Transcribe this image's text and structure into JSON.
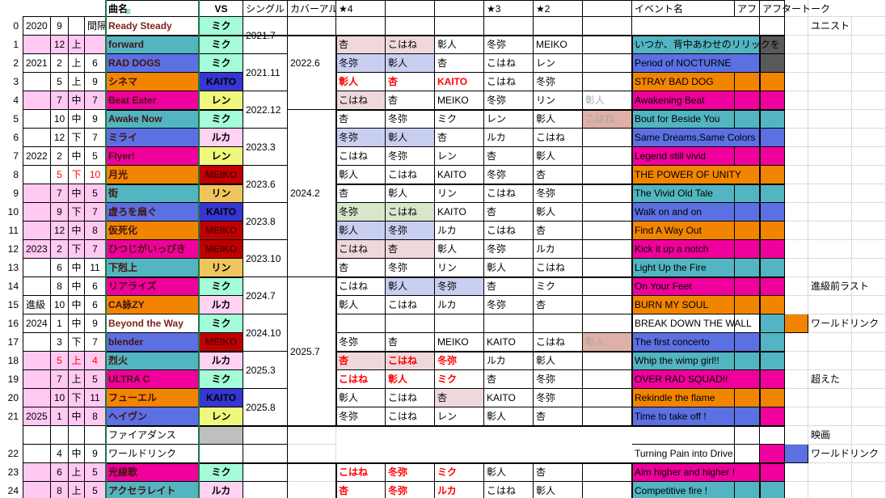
{
  "columns": {
    "song": "曲名",
    "vs": "VS",
    "single": "シングル",
    "cover": "カバーアル",
    "star4": "★4",
    "star3": "★3",
    "star2": "★2",
    "event": "イベント名",
    "af": "アフ",
    "aftertalk": "アフタートーク"
  },
  "icons": {
    "filter": "≡"
  },
  "palette": {
    "white": "#FFFFFF",
    "teal": "#52B5C1",
    "blue": "#5B70E2",
    "orange": "#F28500",
    "magenta": "#F0009C",
    "darkgray": "#595959",
    "graycell": "#BFBFBF",
    "miku": "#A4FCD8",
    "luka": "#FFD1F2",
    "len": "#EFF77D",
    "rin": "#EFC65E",
    "kaito": "#3636D2",
    "meiko": "#C00000",
    "rose": "#EFD8DB",
    "lav": "#C9CFF1",
    "ltgreen": "#D8E6CB",
    "salmon": "#DFB0A5",
    "leftpink": "#FFC9F2"
  },
  "singles": [
    {
      "row": 0,
      "label": "2021.7"
    },
    {
      "row": 2,
      "label": "2021.11"
    },
    {
      "row": 4,
      "label": "2022.12"
    },
    {
      "row": 6,
      "label": "2023.3"
    },
    {
      "row": 8,
      "label": "2023.6"
    },
    {
      "row": 10,
      "label": "2023.8"
    },
    {
      "row": 12,
      "label": "2023.10"
    },
    {
      "row": 14,
      "label": "2024.7"
    },
    {
      "row": 16,
      "label": "2024.10"
    },
    {
      "row": 18,
      "label": "2025.3"
    },
    {
      "row": 20,
      "label": "2025.8"
    }
  ],
  "covers": [
    {
      "row": 0,
      "span": 5,
      "label": "2022.6"
    },
    {
      "row": 5,
      "span": 9,
      "label": "2024.2"
    },
    {
      "row": 14,
      "span": 8,
      "label": "2025.7"
    }
  ],
  "rows": [
    {
      "n": "0",
      "y": "2020",
      "mo": "9",
      "pe": "",
      "ct": "間隔",
      "clip": true,
      "song": {
        "label": "Ready Steady",
        "bg": "white",
        "alt": true
      },
      "vs": {
        "label": "ミク",
        "bg": "miku"
      },
      "chars": [
        {
          "n": ""
        },
        {
          "n": ""
        },
        {
          "n": ""
        },
        {
          "n": ""
        },
        {
          "n": ""
        },
        {
          "n": ""
        }
      ],
      "event": null,
      "af": {
        "bg": "white"
      },
      "at": {
        "bg": "white"
      },
      "note": "ユニスト"
    },
    {
      "n": "1",
      "mo": "12",
      "pe": "上",
      "pink": true,
      "song": {
        "label": "forward",
        "bg": "teal"
      },
      "vs": {
        "label": "ミク",
        "bg": "miku"
      },
      "chars": [
        {
          "n": "杏",
          "bg": "rose"
        },
        {
          "n": "こはね",
          "bg": "rose"
        },
        {
          "n": "彰人"
        },
        {
          "n": "冬弥"
        },
        {
          "n": "MEIKO"
        },
        null
      ],
      "event": {
        "label": "いつか、背中あわせのリリックを",
        "bg": "teal",
        "span": true
      },
      "at": {
        "bg": "darkgray"
      },
      "note": ""
    },
    {
      "n": "2",
      "y": "2021",
      "mo": "2",
      "pe": "上",
      "ct": "6",
      "song": {
        "label": "RAD DOGS",
        "bg": "blue"
      },
      "vs": {
        "label": "ミク",
        "bg": "miku"
      },
      "chars": [
        {
          "n": "冬弥",
          "bg": "lav"
        },
        {
          "n": "彰人",
          "bg": "lav"
        },
        {
          "n": "杏"
        },
        {
          "n": "こはね"
        },
        {
          "n": "レン"
        },
        null
      ],
      "event": {
        "label": "Period of NOCTURNE",
        "bg": "blue",
        "span": true
      },
      "at": {
        "bg": "darkgray"
      },
      "note": ""
    },
    {
      "n": "3",
      "mo": "5",
      "pe": "上",
      "ct": "9",
      "song": {
        "label": "シネマ",
        "bg": "orange"
      },
      "vs": {
        "label": "KAITO",
        "bg": "kaito"
      },
      "chars": [
        {
          "n": "彰人",
          "red": true
        },
        {
          "n": "杏",
          "red": true
        },
        {
          "n": "KAITO",
          "red": true
        },
        {
          "n": "こはね"
        },
        {
          "n": "冬弥"
        },
        null
      ],
      "event": {
        "label": "STRAY BAD DOG",
        "bg": "orange"
      },
      "af": {
        "bg": "orange"
      },
      "at": {
        "bg": "orange"
      },
      "note": ""
    },
    {
      "n": "4",
      "mo": "7",
      "pe": "中",
      "ct": "7",
      "pink": true,
      "song": {
        "label": "Beat Eater",
        "bg": "magenta"
      },
      "vs": {
        "label": "レン",
        "bg": "len"
      },
      "chars": [
        {
          "n": "こはね",
          "bg": "rose"
        },
        {
          "n": "杏"
        },
        {
          "n": "MEIKO"
        },
        {
          "n": "冬弥"
        },
        {
          "n": "リン"
        },
        {
          "n": "彰人",
          "gray": true
        }
      ],
      "event": {
        "label": "Awakening Beat",
        "bg": "magenta"
      },
      "af": {
        "bg": "magenta"
      },
      "at": {
        "bg": "magenta"
      },
      "note": ""
    },
    {
      "n": "5",
      "mo": "10",
      "pe": "中",
      "ct": "9",
      "song": {
        "label": "Awake Now",
        "bg": "teal"
      },
      "vs": {
        "label": "ミク",
        "bg": "miku"
      },
      "chars": [
        {
          "n": "杏"
        },
        {
          "n": "冬弥"
        },
        {
          "n": "ミク"
        },
        {
          "n": "レン"
        },
        {
          "n": "彰人"
        },
        {
          "n": "こはね",
          "bg": "salmon",
          "gray": true
        }
      ],
      "event": {
        "label": "Bout for Beside You",
        "bg": "teal"
      },
      "af": {
        "bg": "teal"
      },
      "at": {
        "bg": "teal"
      },
      "note": ""
    },
    {
      "n": "6",
      "mo": "12",
      "pe": "下",
      "ct": "7",
      "song": {
        "label": "ミライ",
        "bg": "blue"
      },
      "vs": {
        "label": "ルカ",
        "bg": "luka"
      },
      "chars": [
        {
          "n": "冬弥",
          "bg": "lav"
        },
        {
          "n": "彰人",
          "bg": "lav"
        },
        {
          "n": "杏"
        },
        {
          "n": "ルカ"
        },
        {
          "n": "こはね"
        },
        null
      ],
      "event": {
        "label": "Same Dreams,Same Colors",
        "bg": "blue",
        "span": true
      },
      "at": {
        "bg": "blue"
      },
      "note": ""
    },
    {
      "n": "7",
      "y": "2022",
      "mo": "2",
      "pe": "中",
      "ct": "5",
      "song": {
        "label": "Flyer!",
        "bg": "magenta"
      },
      "vs": {
        "label": "レン",
        "bg": "len"
      },
      "chars": [
        {
          "n": "こはね"
        },
        {
          "n": "冬弥"
        },
        {
          "n": "レン"
        },
        {
          "n": "杏"
        },
        {
          "n": "彰人"
        },
        null
      ],
      "event": {
        "label": "Legend still vivid",
        "bg": "magenta"
      },
      "af": {
        "bg": "magenta"
      },
      "at": {
        "bg": "magenta"
      },
      "note": ""
    },
    {
      "n": "8",
      "mo": "5",
      "pe": "下",
      "ct": "10",
      "red": true,
      "song": {
        "label": "月光",
        "bg": "orange"
      },
      "vs": {
        "label": "MEIKO",
        "bg": "meiko"
      },
      "chars": [
        {
          "n": "彰人"
        },
        {
          "n": "こはね"
        },
        {
          "n": "KAITO"
        },
        {
          "n": "冬弥"
        },
        {
          "n": "杏"
        },
        null
      ],
      "event": {
        "label": "THE POWER OF UNITY",
        "bg": "orange",
        "span": true
      },
      "at": {
        "bg": "orange"
      },
      "note": ""
    },
    {
      "n": "9",
      "mo": "7",
      "pe": "中",
      "ct": "5",
      "pink": true,
      "song": {
        "label": "街",
        "bg": "teal"
      },
      "vs": {
        "label": "リン",
        "bg": "rin"
      },
      "chars": [
        {
          "n": "杏"
        },
        {
          "n": "彰人"
        },
        {
          "n": "リン"
        },
        {
          "n": "こはね"
        },
        {
          "n": "冬弥"
        },
        null
      ],
      "event": {
        "label": "The Vivid Old Tale",
        "bg": "teal"
      },
      "af": {
        "bg": "teal"
      },
      "at": {
        "bg": "teal"
      },
      "note": ""
    },
    {
      "n": "10",
      "mo": "9",
      "pe": "下",
      "ct": "7",
      "pink": true,
      "song": {
        "label": "虚ろを扇ぐ",
        "bg": "blue"
      },
      "vs": {
        "label": "KAITO",
        "bg": "kaito"
      },
      "chars": [
        {
          "n": "冬弥",
          "bg": "ltgreen"
        },
        {
          "n": "こはね",
          "bg": "ltgreen"
        },
        {
          "n": "KAITO"
        },
        {
          "n": "杏"
        },
        {
          "n": "彰人"
        },
        null
      ],
      "event": {
        "label": "Walk on and on",
        "bg": "blue"
      },
      "af": {
        "bg": "blue"
      },
      "at": {
        "bg": "blue"
      },
      "note": ""
    },
    {
      "n": "11",
      "mo": "12",
      "pe": "中",
      "ct": "8",
      "pink": true,
      "song": {
        "label": "仮死化",
        "bg": "orange"
      },
      "vs": {
        "label": "MEIKO",
        "bg": "meiko"
      },
      "chars": [
        {
          "n": "彰人",
          "bg": "lav"
        },
        {
          "n": "冬弥",
          "bg": "lav"
        },
        {
          "n": "ルカ"
        },
        {
          "n": "こはね"
        },
        {
          "n": "杏"
        },
        null
      ],
      "event": {
        "label": "Find A Way Out",
        "bg": "orange"
      },
      "af": {
        "bg": "orange"
      },
      "at": {
        "bg": "orange"
      },
      "note": ""
    },
    {
      "n": "12",
      "y": "2023",
      "mo": "2",
      "pe": "下",
      "ct": "7",
      "pink": true,
      "song": {
        "label": "ひつじがいっぴき",
        "bg": "magenta"
      },
      "vs": {
        "label": "MEIKO",
        "bg": "meiko"
      },
      "chars": [
        {
          "n": "こはね",
          "bg": "rose"
        },
        {
          "n": "杏",
          "bg": "rose"
        },
        {
          "n": "彰人"
        },
        {
          "n": "冬弥"
        },
        {
          "n": "ルカ"
        },
        null
      ],
      "event": {
        "label": "Kick it up a notch",
        "bg": "magenta"
      },
      "af": {
        "bg": "magenta"
      },
      "at": {
        "bg": "magenta"
      },
      "note": ""
    },
    {
      "n": "13",
      "mo": "6",
      "pe": "中",
      "ct": "11",
      "song": {
        "label": "下剋上",
        "bg": "teal"
      },
      "vs": {
        "label": "リン",
        "bg": "rin"
      },
      "chars": [
        {
          "n": "杏"
        },
        {
          "n": "冬弥"
        },
        {
          "n": "リン"
        },
        {
          "n": "彰人"
        },
        {
          "n": "こはね"
        },
        null
      ],
      "event": {
        "label": "Light Up the Fire",
        "bg": "teal"
      },
      "af": {
        "bg": "teal"
      },
      "at": {
        "bg": "teal"
      },
      "note": ""
    },
    {
      "n": "14",
      "mo": "8",
      "pe": "中",
      "ct": "6",
      "song": {
        "label": "リアライズ",
        "bg": "magenta"
      },
      "vs": {
        "label": "ミク",
        "bg": "miku"
      },
      "chars": [
        {
          "n": "こはね"
        },
        {
          "n": "彰人",
          "bg": "lav"
        },
        {
          "n": "冬弥",
          "bg": "lav"
        },
        {
          "n": "杏"
        },
        {
          "n": "ミク"
        },
        null
      ],
      "event": {
        "label": "On Your Feet",
        "bg": "magenta"
      },
      "af": {
        "bg": "magenta"
      },
      "at": {
        "bg": "magenta"
      },
      "note": "進級前ラスト"
    },
    {
      "n": "15",
      "y": "進級",
      "mo": "10",
      "pe": "中",
      "ct": "6",
      "song": {
        "label": "CA詠ZY",
        "bg": "orange"
      },
      "vs": {
        "label": "ルカ",
        "bg": "luka"
      },
      "chars": [
        {
          "n": "彰人"
        },
        {
          "n": "こはね"
        },
        {
          "n": "ルカ"
        },
        {
          "n": "冬弥"
        },
        {
          "n": "杏"
        },
        null
      ],
      "event": {
        "label": "BURN MY SOUL",
        "bg": "orange"
      },
      "af": {
        "bg": "orange"
      },
      "at": {
        "bg": "orange"
      },
      "note": ""
    },
    {
      "n": "16",
      "y": "2024",
      "mo": "1",
      "pe": "中",
      "ct": "9",
      "song": {
        "label": "Beyond the Way",
        "bg": "white",
        "alt": true
      },
      "vs": {
        "label": "ミク",
        "bg": "miku"
      },
      "chars": [
        {
          "n": ""
        },
        {
          "n": ""
        },
        {
          "n": ""
        },
        {
          "n": ""
        },
        {
          "n": ""
        },
        {
          "n": ""
        }
      ],
      "event": {
        "label": "BREAK DOWN THE WALL",
        "bg": "white"
      },
      "af": {
        "bg": "white"
      },
      "at": {
        "bg": "teal"
      },
      "extra": "orange",
      "note": "ワールドリンク"
    },
    {
      "n": "17",
      "mo": "3",
      "pe": "下",
      "ct": "7",
      "song": {
        "label": "blender",
        "bg": "blue"
      },
      "vs": {
        "label": "MEIKO",
        "bg": "meiko"
      },
      "chars": [
        {
          "n": "冬弥"
        },
        {
          "n": "杏"
        },
        {
          "n": "MEIKO"
        },
        {
          "n": "KAITO"
        },
        {
          "n": "こはね"
        },
        {
          "n": "彰人",
          "bg": "salmon",
          "gray": true
        }
      ],
      "event": {
        "label": "The first concerto",
        "bg": "blue"
      },
      "af": {
        "bg": "blue"
      },
      "at": {
        "bg": "teal"
      },
      "note": ""
    },
    {
      "n": "18",
      "mo": "5",
      "pe": "上",
      "ct": "4",
      "red": true,
      "pink": true,
      "song": {
        "label": "烈火",
        "bg": "teal"
      },
      "vs": {
        "label": "ルカ",
        "bg": "luka"
      },
      "chars": [
        {
          "n": "杏",
          "bg": "rose",
          "red": true
        },
        {
          "n": "こはね",
          "bg": "rose",
          "red": true
        },
        {
          "n": "冬弥",
          "red": true
        },
        {
          "n": "ルカ"
        },
        {
          "n": "彰人"
        },
        null
      ],
      "event": {
        "label": "Whip the wimp girl!!",
        "bg": "teal"
      },
      "af": {
        "bg": "teal"
      },
      "at": {
        "bg": "teal"
      },
      "note": ""
    },
    {
      "n": "19",
      "mo": "7",
      "pe": "上",
      "ct": "5",
      "pink": true,
      "song": {
        "label": "ULTRA C",
        "bg": "magenta"
      },
      "vs": {
        "label": "ミク",
        "bg": "miku"
      },
      "chars": [
        {
          "n": "こはね",
          "red": true
        },
        {
          "n": "彰人",
          "red": true
        },
        {
          "n": "ミク",
          "red": true
        },
        {
          "n": "杏"
        },
        {
          "n": "冬弥"
        },
        null
      ],
      "event": {
        "label": "OVER RAD SQUAD!!",
        "bg": "magenta",
        "span": true
      },
      "at": {
        "bg": "magenta"
      },
      "note": "超えた"
    },
    {
      "n": "20",
      "mo": "10",
      "pe": "下",
      "ct": "11",
      "pink": true,
      "song": {
        "label": "フューエル",
        "bg": "orange"
      },
      "vs": {
        "label": "KAITO",
        "bg": "kaito"
      },
      "chars": [
        {
          "n": "彰人"
        },
        {
          "n": "こはね"
        },
        {
          "n": "杏",
          "bg": "rose"
        },
        {
          "n": "KAITO"
        },
        {
          "n": "冬弥"
        },
        null
      ],
      "event": {
        "label": "Rekindle the flame",
        "bg": "orange"
      },
      "af": {
        "bg": "orange"
      },
      "at": {
        "bg": "orange"
      },
      "note": ""
    },
    {
      "n": "21",
      "y": "2025",
      "mo": "1",
      "pe": "中",
      "ct": "8",
      "pink": true,
      "song": {
        "label": "ヘイヴン",
        "bg": "blue"
      },
      "vs": {
        "label": "レン",
        "bg": "len"
      },
      "chars": [
        {
          "n": "冬弥"
        },
        {
          "n": "こはね"
        },
        {
          "n": "レン"
        },
        {
          "n": "彰人"
        },
        {
          "n": "杏"
        },
        null
      ],
      "event": {
        "label": "Time to take off !",
        "bg": "blue"
      },
      "af": {
        "bg": "blue"
      },
      "at": {
        "bg": "magenta"
      },
      "note": ""
    },
    {
      "n": "",
      "song": {
        "label": "ファイアダンス",
        "bg": "white",
        "plain": true
      },
      "vs": {
        "label": "",
        "bg": "graycell"
      },
      "chars": null,
      "event": {
        "label": "",
        "bg": "white"
      },
      "af": {
        "bg": "white"
      },
      "at": {
        "bg": "white"
      },
      "note": "映画"
    },
    {
      "n": "22",
      "mo": "4",
      "pe": "中",
      "ct": "9",
      "song": {
        "label": "ワールドリンク",
        "bg": "white",
        "plain": true
      },
      "vs": {
        "label": ""
      },
      "chars": null,
      "event": {
        "label": "Turning Pain into Drive",
        "bg": "white"
      },
      "af": {
        "bg": "white"
      },
      "at": {
        "bg": "magenta"
      },
      "extra": "blue",
      "note": "ワールドリンク"
    },
    {
      "n": "23",
      "mo": "6",
      "pe": "上",
      "ct": "5",
      "pink": true,
      "song": {
        "label": "光線歌",
        "bg": "magenta"
      },
      "vs": {
        "label": "ミク",
        "bg": "miku"
      },
      "chars": [
        {
          "n": "こはね",
          "red": true
        },
        {
          "n": "冬弥",
          "red": true
        },
        {
          "n": "ミク",
          "red": true
        },
        {
          "n": "彰人"
        },
        {
          "n": "杏"
        },
        null
      ],
      "event": {
        "label": "Aim higher and higher !",
        "bg": "magenta",
        "span": true
      },
      "at": {
        "bg": "magenta"
      },
      "note": ""
    },
    {
      "n": "24",
      "mo": "8",
      "pe": "上",
      "ct": "5",
      "pink": true,
      "song": {
        "label": "アクセラレイト",
        "bg": "teal"
      },
      "vs": {
        "label": "ルカ",
        "bg": "luka"
      },
      "chars": [
        {
          "n": "杏",
          "red": true
        },
        {
          "n": "冬弥",
          "red": true
        },
        {
          "n": "ルカ",
          "red": true
        },
        {
          "n": "こはね"
        },
        {
          "n": "彰人"
        },
        null
      ],
      "event": {
        "label": "Competitive fire !",
        "bg": "teal"
      },
      "af": {
        "bg": "teal"
      },
      "at": {
        "bg": "teal"
      },
      "note": ""
    }
  ]
}
